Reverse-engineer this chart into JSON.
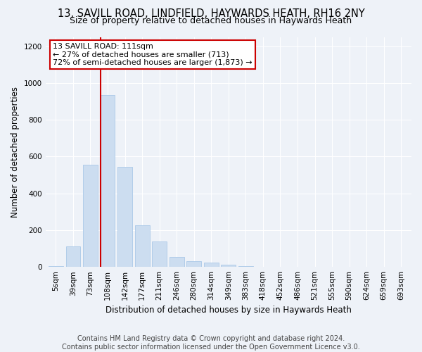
{
  "title1": "13, SAVILL ROAD, LINDFIELD, HAYWARDS HEATH, RH16 2NY",
  "title2": "Size of property relative to detached houses in Haywards Heath",
  "xlabel": "Distribution of detached houses by size in Haywards Heath",
  "ylabel": "Number of detached properties",
  "categories": [
    "5sqm",
    "39sqm",
    "73sqm",
    "108sqm",
    "142sqm",
    "177sqm",
    "211sqm",
    "246sqm",
    "280sqm",
    "314sqm",
    "349sqm",
    "383sqm",
    "418sqm",
    "452sqm",
    "486sqm",
    "521sqm",
    "555sqm",
    "590sqm",
    "624sqm",
    "659sqm",
    "693sqm"
  ],
  "values": [
    5,
    110,
    555,
    935,
    545,
    225,
    140,
    55,
    33,
    22,
    12,
    3,
    2,
    1,
    0,
    0,
    0,
    0,
    0,
    0,
    0
  ],
  "bar_color": "#ccddf0",
  "bar_edge_color": "#aac8e8",
  "property_line_bar_index": 3,
  "annotation_line1": "13 SAVILL ROAD: 111sqm",
  "annotation_line2": "← 27% of detached houses are smaller (713)",
  "annotation_line3": "72% of semi-detached houses are larger (1,873) →",
  "annotation_box_color": "#ffffff",
  "annotation_box_edge_color": "#cc0000",
  "property_line_color": "#cc0000",
  "ylim": [
    0,
    1250
  ],
  "yticks": [
    0,
    200,
    400,
    600,
    800,
    1000,
    1200
  ],
  "footer1": "Contains HM Land Registry data © Crown copyright and database right 2024.",
  "footer2": "Contains public sector information licensed under the Open Government Licence v3.0.",
  "background_color": "#eef2f8",
  "plot_bg_color": "#eef2f8",
  "title1_fontsize": 10.5,
  "title2_fontsize": 9,
  "xlabel_fontsize": 8.5,
  "ylabel_fontsize": 8.5,
  "tick_fontsize": 7.5,
  "footer_fontsize": 7,
  "annotation_fontsize": 8
}
